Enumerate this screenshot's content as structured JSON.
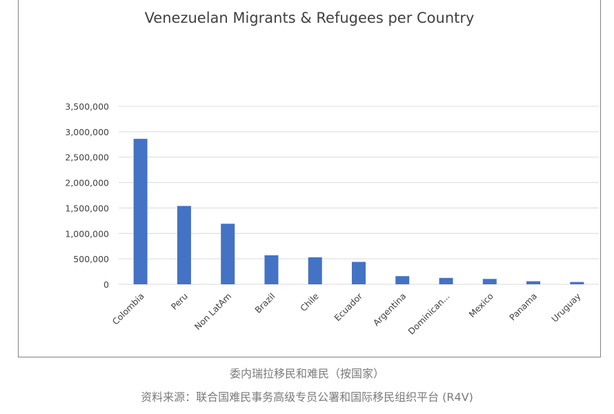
{
  "chart_data": {
    "type": "bar",
    "title": "Venezuelan Migrants & Refugees per Country",
    "categories": [
      "Colombia",
      "Peru",
      "Non LatAm",
      "Brazil",
      "Chile",
      "Ecuador",
      "Argentina",
      "Dominican...",
      "Mexico",
      "Panama",
      "Uruguay"
    ],
    "values": [
      2860000,
      1540000,
      1190000,
      570000,
      530000,
      440000,
      160000,
      125000,
      105000,
      60000,
      45000
    ],
    "ylim": [
      0,
      3500000
    ],
    "yticks": [
      0,
      500000,
      1000000,
      1500000,
      2000000,
      2500000,
      3000000,
      3500000
    ],
    "ytick_labels": [
      "0",
      "500,000",
      "1,000,000",
      "1,500,000",
      "2,000,000",
      "2,500,000",
      "3,000,000",
      "3,500,000"
    ],
    "xlabel": "",
    "ylabel": "",
    "grid": true,
    "bar_color": "#4472c4",
    "grid_color": "#d9d9d9"
  },
  "captions": {
    "line1": "委内瑞拉移民和难民（按国家）",
    "line2": "资料来源：联合国难民事务高级专员公署和国际移民组织平台 (R4V)"
  }
}
